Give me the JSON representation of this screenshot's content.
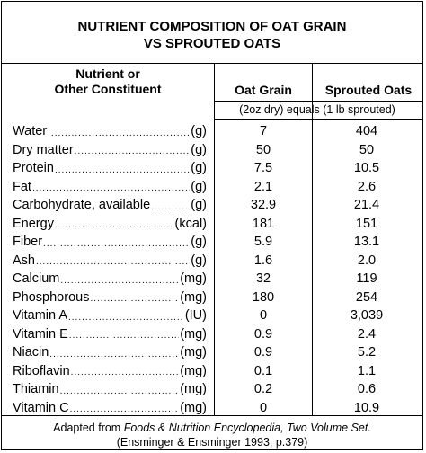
{
  "title_line1": "NUTRIENT COMPOSITION OF OAT GRAIN",
  "title_line2": "VS SPROUTED OATS",
  "header": {
    "nutrient_line1": "Nutrient or",
    "nutrient_line2": "Other Constituent",
    "col1": "Oat Grain",
    "col2": "Sprouted Oats",
    "subheader": "(2oz dry) equals (1 lb sprouted)"
  },
  "rows": [
    {
      "name": "Water",
      "unit": "(g)",
      "oat": "7",
      "sprouted": "404"
    },
    {
      "name": "Dry matter",
      "unit": "(g)",
      "oat": "50",
      "sprouted": "50"
    },
    {
      "name": "Protein",
      "unit": "(g)",
      "oat": "7.5",
      "sprouted": "10.5"
    },
    {
      "name": "Fat",
      "unit": "(g)",
      "oat": "2.1",
      "sprouted": "2.6"
    },
    {
      "name": "Carbohydrate, available",
      "unit": "(g)",
      "oat": "32.9",
      "sprouted": "21.4"
    },
    {
      "name": "Energy",
      "unit": "(kcal)",
      "oat": "181",
      "sprouted": "151"
    },
    {
      "name": "Fiber",
      "unit": "(g)",
      "oat": "5.9",
      "sprouted": "13.1"
    },
    {
      "name": "Ash",
      "unit": "(g)",
      "oat": "1.6",
      "sprouted": "2.0"
    },
    {
      "name": "Calcium",
      "unit": "(mg)",
      "oat": "32",
      "sprouted": "119"
    },
    {
      "name": "Phosphorous",
      "unit": "(mg)",
      "oat": "180",
      "sprouted": "254"
    },
    {
      "name": "Vitamin A",
      "unit": "(IU)",
      "oat": "0",
      "sprouted": "3,039"
    },
    {
      "name": "Vitamin E",
      "unit": "(mg)",
      "oat": "0.9",
      "sprouted": "2.4"
    },
    {
      "name": "Niacin",
      "unit": "(mg)",
      "oat": "0.9",
      "sprouted": "5.2"
    },
    {
      "name": "Riboflavin",
      "unit": "(mg)",
      "oat": "0.1",
      "sprouted": "1.1"
    },
    {
      "name": "Thiamin",
      "unit": "(mg)",
      "oat": "0.2",
      "sprouted": "0.6"
    },
    {
      "name": "Vitamin C",
      "unit": "(mg)",
      "oat": "0",
      "sprouted": "10.9"
    }
  ],
  "footer": {
    "line1_prefix": "Adapted from ",
    "line1_italic": "Foods & Nutrition Encyclopedia, Two Volume Set.",
    "line2": "(Ensminger & Ensminger 1993, p.379)"
  }
}
